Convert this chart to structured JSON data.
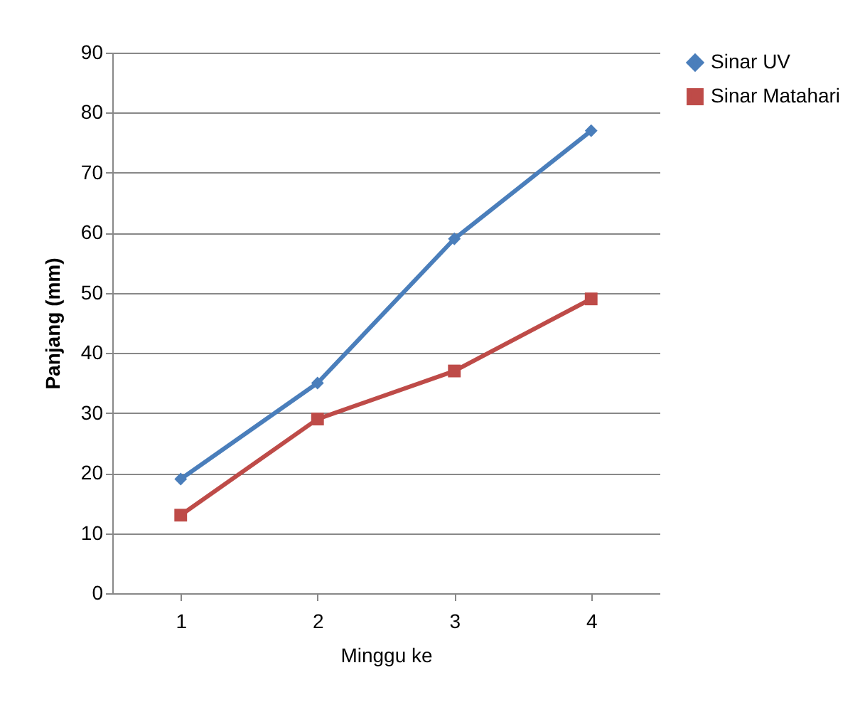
{
  "chart_data": {
    "type": "line",
    "xlabel": "Minggu ke",
    "ylabel": "Panjang (mm)",
    "categories": [
      "1",
      "2",
      "3",
      "4"
    ],
    "series": [
      {
        "name": "Sinar UV",
        "color": "#4a7ebb",
        "marker": "diamond",
        "values": [
          19,
          35,
          59,
          77
        ]
      },
      {
        "name": "Sinar Matahari",
        "color": "#be4b48",
        "marker": "square",
        "values": [
          13,
          29,
          37,
          49
        ]
      }
    ],
    "ylim": [
      0,
      90
    ],
    "yticks": [
      0,
      10,
      20,
      30,
      40,
      50,
      60,
      70,
      80,
      90
    ],
    "grid": "y",
    "legend": "right",
    "line_style": "solid"
  }
}
